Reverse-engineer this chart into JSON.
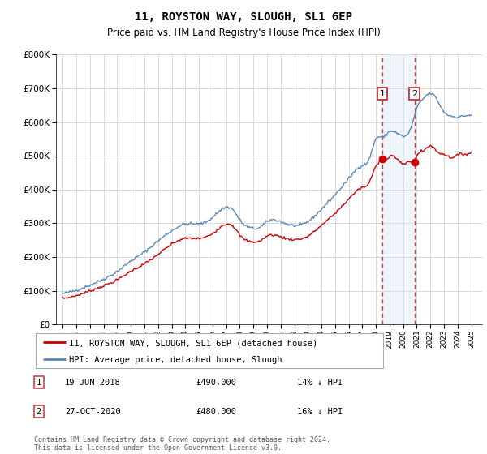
{
  "title": "11, ROYSTON WAY, SLOUGH, SL1 6EP",
  "subtitle": "Price paid vs. HM Land Registry's House Price Index (HPI)",
  "legend_line1": "11, ROYSTON WAY, SLOUGH, SL1 6EP (detached house)",
  "legend_line2": "HPI: Average price, detached house, Slough",
  "footnote": "Contains HM Land Registry data © Crown copyright and database right 2024.\nThis data is licensed under the Open Government Licence v3.0.",
  "annotation1_date": "19-JUN-2018",
  "annotation1_price": "£490,000",
  "annotation1_hpi": "14% ↓ HPI",
  "annotation2_date": "27-OCT-2020",
  "annotation2_price": "£480,000",
  "annotation2_hpi": "16% ↓ HPI",
  "red_line_color": "#cc0000",
  "blue_line_color": "#5588bb",
  "shaded_color": "#d8e8f5",
  "marker1_x": 2018.47,
  "marker2_x": 2020.83,
  "marker1_y": 490000,
  "marker2_y": 480000,
  "vline1_x": 2018.47,
  "vline2_x": 2020.83,
  "ylim_min": 0,
  "ylim_max": 800000,
  "xlim_min": 1994.5,
  "xlim_max": 2025.8,
  "yticks": [
    0,
    100000,
    200000,
    300000,
    400000,
    500000,
    600000,
    700000,
    800000
  ],
  "xticks": [
    1995,
    1996,
    1997,
    1998,
    1999,
    2000,
    2001,
    2002,
    2003,
    2004,
    2005,
    2006,
    2007,
    2008,
    2009,
    2010,
    2011,
    2012,
    2013,
    2014,
    2015,
    2016,
    2017,
    2018,
    2019,
    2020,
    2021,
    2022,
    2023,
    2024,
    2025
  ]
}
